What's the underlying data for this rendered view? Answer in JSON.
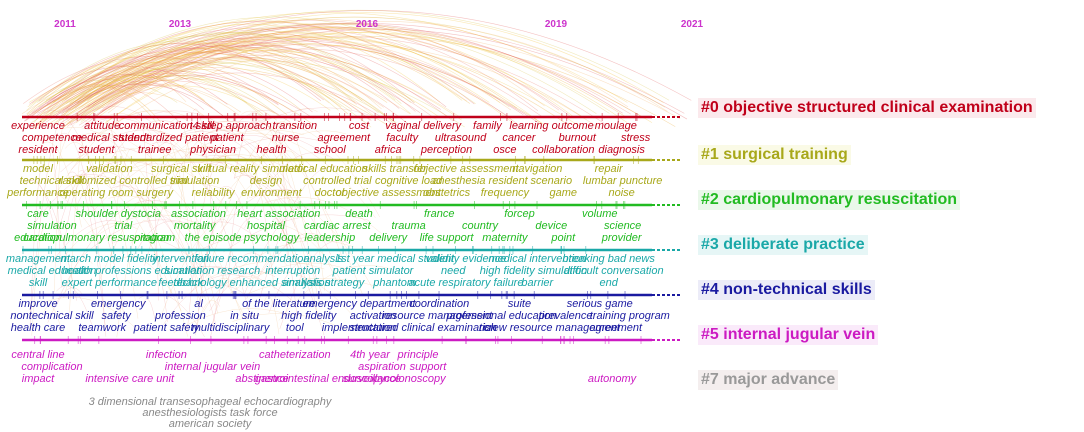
{
  "timeline": {
    "years": [
      "2011",
      "2013",
      "2016",
      "2019",
      "2021"
    ]
  },
  "clusters": [
    {
      "id": "cluster-0",
      "label": "#0 objective structured clinical examination",
      "color": "#c0001a",
      "bg": "#fbe9ec",
      "rows": [
        [
          "experience",
          "attitude",
          "communication skill",
          "t4 step approach",
          "transition",
          "cost",
          "vaginal delivery",
          "family",
          "learning outcome",
          "moulage"
        ],
        [
          "competence",
          "medical student",
          "standardized patient",
          "patient",
          "nurse",
          "agreement",
          "faculty",
          "ultrasound",
          "cancer",
          "burnout",
          "stress"
        ],
        [
          "resident",
          "student",
          "trainee",
          "physician",
          "health",
          "school",
          "africa",
          "perception",
          "osce",
          "collaboration",
          "diagnosis"
        ]
      ]
    },
    {
      "id": "cluster-1",
      "label": "#1 surgical training",
      "color": "#a8a81a",
      "bg": "#fafae6",
      "rows": [
        [
          "model",
          "validation",
          "surgical skill",
          "virtual reality simulator",
          "medical education",
          "skills transfer",
          "objective assessment",
          "navigation",
          "repair"
        ],
        [
          "technical skill",
          "randomized controlled trial",
          "simulation",
          "design",
          "controlled trial",
          "cognitive load",
          "anesthesia resident",
          "scenario",
          "lumbar puncture"
        ],
        [
          "performance",
          "operating room",
          "surgery",
          "reliability",
          "environment",
          "doctor",
          "objective assessment",
          "obstetrics",
          "frequency",
          "game",
          "noise"
        ]
      ]
    },
    {
      "id": "cluster-2",
      "label": "#2 cardiopulmonary resuscitation",
      "color": "#22bb22",
      "bg": "#eaf8ea",
      "rows": [
        [
          "care",
          "shoulder dystocia",
          "association",
          "heart association",
          "death",
          "france",
          "forcep",
          "volume"
        ],
        [
          "simulation",
          "trial",
          "mortality",
          "hospital",
          "cardiac arrest",
          "trauma",
          "country",
          "device",
          "science"
        ],
        [
          "education",
          "cardiopulmonary resuscitation",
          "program",
          "the episode",
          "psychology",
          "leadership",
          "delivery",
          "life support",
          "maternity",
          "point",
          "provider"
        ]
      ]
    },
    {
      "id": "cluster-3",
      "label": "#3 deliberate practice",
      "color": "#1aa8a8",
      "bg": "#e6f6f6",
      "rows": [
        [
          "management",
          "march model fidelity",
          "intervention",
          "failure recommendation",
          "analysis",
          "1st year medical student",
          "validity evidence",
          "medical intervention",
          "breaking bad news"
        ],
        [
          "medical education",
          "health professions education",
          "simulation research",
          "interruption",
          "patient simulator",
          "need",
          "high fidelity simulation",
          "difficult conversation"
        ],
        [
          "skill",
          "expert performance",
          "feedback",
          "technology enhanced simulation",
          "analysis strategy",
          "phantom",
          "acute respiratory failure",
          "barrier",
          "end"
        ]
      ]
    },
    {
      "id": "cluster-4",
      "label": "#4 non-technical skills",
      "color": "#1a1aa0",
      "bg": "#ececf8",
      "rows": [
        [
          "improve",
          "emergency",
          "al",
          "of the literature",
          "emergency department",
          "coordination",
          "suite",
          "serious game"
        ],
        [
          "nontechnical skill",
          "safety",
          "profession",
          "in situ",
          "high fidelity",
          "activation",
          "resource management",
          "professional education",
          "prevalence",
          "training program"
        ],
        [
          "health care",
          "teamwork",
          "patient safety",
          "multidisciplinary",
          "tool",
          "implementation",
          "structured clinical examination",
          "risk",
          "crew resource management",
          "agreement"
        ]
      ]
    },
    {
      "id": "cluster-5",
      "label": "#5 internal jugular vein",
      "color": "#cc1ac2",
      "bg": "#faeafa",
      "rows": [
        [
          "central line",
          "infection",
          "catheterization",
          "4th year",
          "principle"
        ],
        [
          "complication",
          "internal jugular vein",
          "aspiration",
          "support"
        ],
        [
          "impact",
          "intensive care unit",
          "abstinence",
          "gastrointestinal endoscopy",
          "surveillance",
          "colonoscopy",
          "autonomy"
        ]
      ]
    },
    {
      "id": "cluster-7",
      "label": "#7 major advance",
      "color": "#999999",
      "bg": "#f4eeee",
      "rows": [
        [
          "3 dimensional transesophageal echocardiography"
        ],
        [
          "anesthesiologists task force"
        ],
        [
          "american society"
        ]
      ]
    }
  ]
}
